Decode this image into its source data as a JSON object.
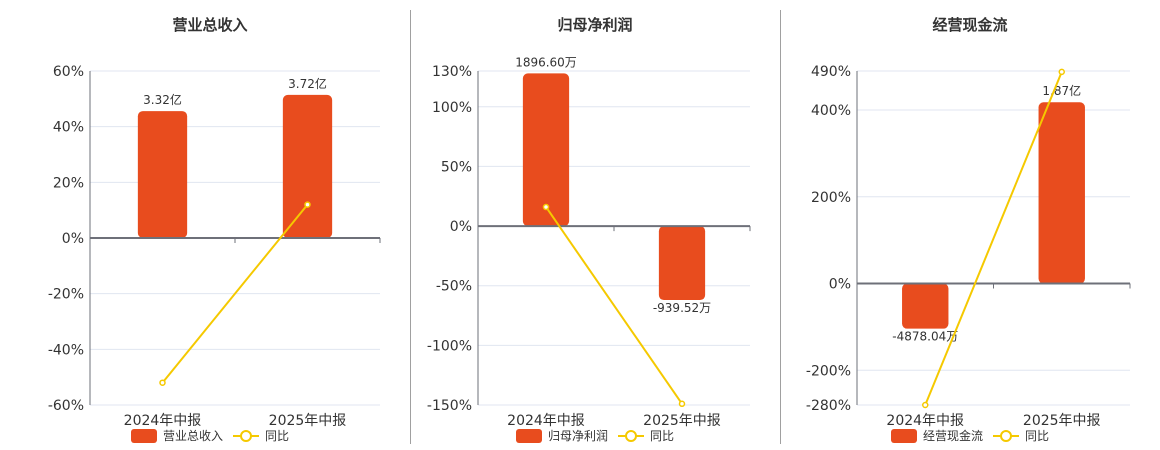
{
  "colors": {
    "bar": "#e84c1e",
    "line": "#f5c900",
    "grid": "#e0e6f0",
    "axis": "#6e7079",
    "text": "#333333"
  },
  "legend_yoy_label": "同比",
  "chart_data": [
    {
      "type": "bar+line",
      "title": "营业总收入",
      "categories": [
        "2024年中报",
        "2025年中报"
      ],
      "y_ticks": [
        "60%",
        "40%",
        "20%",
        "0%",
        "-20%",
        "-40%",
        "-60%"
      ],
      "ylim": [
        -60,
        60
      ],
      "grid": true,
      "legend_position": "bottom",
      "series": [
        {
          "name": "营业总收入",
          "kind": "bar",
          "values_pct": [
            45.6,
            51.4
          ],
          "labels": [
            "3.32亿",
            "3.72亿"
          ]
        },
        {
          "name": "同比",
          "kind": "line",
          "values": [
            -52.0,
            12.0
          ]
        }
      ]
    },
    {
      "type": "bar+line",
      "title": "归母净利润",
      "categories": [
        "2024年中报",
        "2025年中报"
      ],
      "y_ticks": [
        "130%",
        "100%",
        "50%",
        "0%",
        "-50%",
        "-100%",
        "-150%"
      ],
      "ylim": [
        -150,
        130
      ],
      "grid": true,
      "legend_position": "bottom",
      "series": [
        {
          "name": "归母净利润",
          "kind": "bar",
          "values_pct": [
            128.0,
            -62.0
          ],
          "labels": [
            "1896.60万",
            "-939.52万"
          ]
        },
        {
          "name": "同比",
          "kind": "line",
          "values": [
            16.0,
            -149.0
          ]
        }
      ]
    },
    {
      "type": "bar+line",
      "title": "经营现金流",
      "categories": [
        "2024年中报",
        "2025年中报"
      ],
      "y_ticks": [
        "490%",
        "400%",
        "200%",
        "0%",
        "-200%",
        "-280%"
      ],
      "ylim": [
        -280,
        490
      ],
      "grid": true,
      "legend_position": "bottom",
      "series": [
        {
          "name": "经营现金流",
          "kind": "bar",
          "values_pct": [
            -104.0,
            418.0
          ],
          "labels": [
            "-4878.04万",
            "1.87亿"
          ]
        },
        {
          "name": "同比",
          "kind": "line",
          "values": [
            -280.0,
            488.0
          ]
        }
      ]
    }
  ]
}
